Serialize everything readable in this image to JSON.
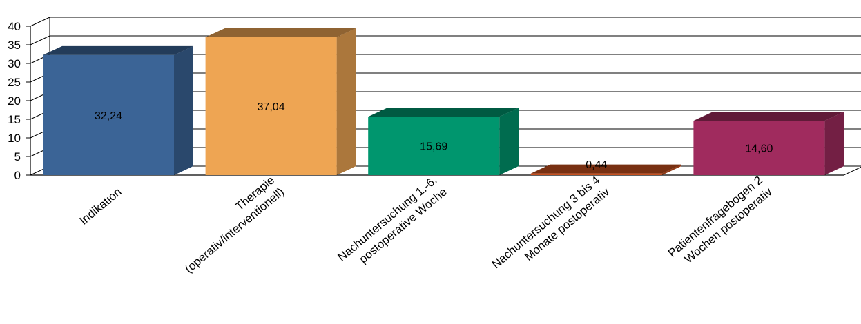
{
  "chart_data": {
    "type": "bar",
    "style": "3d",
    "categories": [
      [
        "Indikation"
      ],
      [
        "Therapie",
        "(operativ/interventionell)"
      ],
      [
        "Nachuntersuchung 1.-6.",
        "postoperative Woche"
      ],
      [
        "Nachuntersuchung 3 bis 4",
        "Monate postoperativ"
      ],
      [
        "Patientenfragebogen 2",
        "Wochen postoperativ"
      ]
    ],
    "values": [
      32.24,
      37.04,
      15.69,
      0.44,
      14.6
    ],
    "value_labels": [
      "32,24",
      "37,04",
      "15,69",
      "0,44",
      "14,60"
    ],
    "colors": [
      "#3b6496",
      "#eea553",
      "#00966e",
      "#c8501e",
      "#a02b5e"
    ],
    "ylim": [
      0,
      40
    ],
    "yticks": [
      "0",
      "5",
      "10",
      "15",
      "20",
      "25",
      "30",
      "35",
      "40"
    ],
    "grid": true,
    "legend": false
  }
}
